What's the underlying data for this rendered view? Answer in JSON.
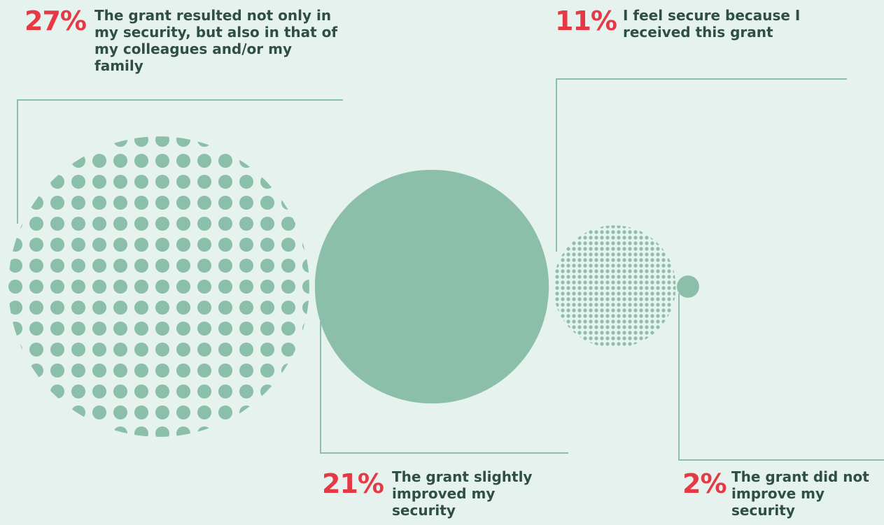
{
  "chart_data": {
    "type": "bubble",
    "categories": [
      "The grant resulted not only in my security, but also in that of my colleagues and/or my family",
      "The grant slightly improved my security",
      "I feel secure because I received this grant",
      "The grant did not improve my security"
    ],
    "values": [
      27,
      21,
      11,
      2
    ],
    "value_labels": [
      "27%",
      "21%",
      "11%",
      "2%"
    ],
    "color": "#8bbfa9",
    "pattern": [
      "dots",
      "solid",
      "dots",
      "solid"
    ]
  }
}
